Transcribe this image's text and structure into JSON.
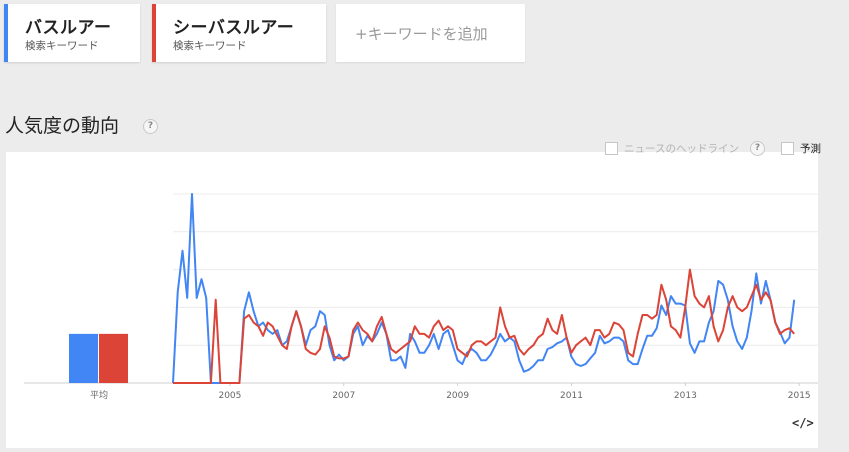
{
  "keywords": [
    {
      "term": "バスルアー",
      "type": "検索キーワード",
      "color": "#4285f4"
    },
    {
      "term": "シーバスルアー",
      "type": "検索キーワード",
      "color": "#db4437"
    }
  ],
  "add_keyword": "+キーワードを追加",
  "section": {
    "title": "人気度の動向",
    "help": "?"
  },
  "options": {
    "news_headlines": "ニュースのヘッドライン",
    "news_help": "?",
    "forecast": "予測"
  },
  "embed_icon": "</>",
  "chart_data": {
    "type": "line",
    "average_label": "平均",
    "average": [
      {
        "name": "バスルアー",
        "value": 26,
        "color": "#4285f4"
      },
      {
        "name": "シーバスルアー",
        "value": 26,
        "color": "#db4437"
      }
    ],
    "x_ticks": [
      "2005",
      "2007",
      "2009",
      "2011",
      "2013",
      "2015"
    ],
    "x_tick_values": [
      2005.0,
      2007.0,
      2009.0,
      2011.0,
      2013.0,
      2015.0
    ],
    "xlim": [
      2004.0,
      2015.33
    ],
    "ylim": [
      0,
      100
    ],
    "grid": true,
    "series": [
      {
        "name": "バスルアー",
        "color": "#4285f4",
        "x_start": 2004.0,
        "step": 0.0833,
        "values": [
          0,
          48,
          70,
          45,
          100,
          45,
          55,
          45,
          0,
          0,
          0,
          0,
          0,
          0,
          0,
          38,
          48,
          38,
          30,
          32,
          28,
          26,
          28,
          20,
          22,
          30,
          38,
          30,
          20,
          28,
          30,
          38,
          36,
          20,
          12,
          15,
          12,
          14,
          26,
          30,
          20,
          25,
          22,
          26,
          32,
          26,
          12,
          12,
          14,
          8,
          26,
          22,
          16,
          16,
          20,
          26,
          18,
          26,
          28,
          20,
          12,
          10,
          16,
          18,
          16,
          12,
          12,
          15,
          20,
          26,
          22,
          24,
          22,
          12,
          6,
          7,
          9,
          12,
          12,
          18,
          19,
          21,
          22,
          24,
          14,
          10,
          9,
          10,
          13,
          16,
          25,
          21,
          22,
          24,
          24,
          22,
          12,
          10,
          10,
          18,
          25,
          25,
          29,
          41,
          36,
          46,
          42,
          42,
          41,
          21,
          16,
          22,
          22,
          32,
          38,
          54,
          52,
          44,
          30,
          22,
          18,
          24,
          38,
          58,
          42,
          54,
          44,
          32,
          27,
          21,
          24,
          44
        ]
      },
      {
        "name": "シーバスルアー",
        "color": "#db4437",
        "x_start": 2004.0,
        "step": 0.0833,
        "values": [
          0,
          0,
          0,
          0,
          0,
          0,
          0,
          0,
          0,
          44,
          0,
          0,
          0,
          0,
          0,
          34,
          36,
          32,
          30,
          25,
          32,
          30,
          25,
          20,
          18,
          30,
          38,
          30,
          18,
          16,
          15,
          18,
          30,
          24,
          14,
          13,
          13,
          14,
          28,
          32,
          28,
          26,
          22,
          30,
          35,
          26,
          18,
          16,
          18,
          20,
          22,
          30,
          26,
          26,
          24,
          30,
          33,
          28,
          30,
          28,
          18,
          16,
          14,
          20,
          22,
          22,
          20,
          22,
          24,
          40,
          30,
          24,
          25,
          18,
          15,
          18,
          20,
          24,
          26,
          34,
          28,
          26,
          36,
          24,
          16,
          20,
          22,
          24,
          20,
          28,
          28,
          24,
          26,
          32,
          31,
          28,
          16,
          14,
          26,
          36,
          36,
          34,
          36,
          52,
          44,
          30,
          28,
          24,
          40,
          60,
          46,
          42,
          40,
          46,
          30,
          22,
          28,
          40,
          46,
          40,
          38,
          40,
          46,
          52,
          44,
          48,
          44,
          32,
          26,
          28,
          29,
          26
        ]
      }
    ]
  }
}
